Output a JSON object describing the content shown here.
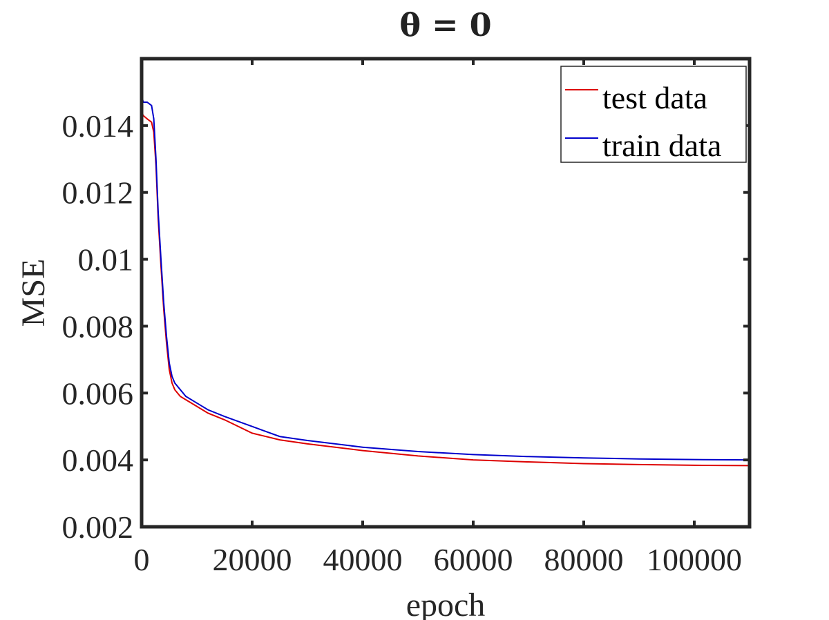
{
  "chart_data": {
    "type": "line",
    "title": "θ = 0",
    "xlabel": "epoch",
    "ylabel": "MSE",
    "xlim": [
      0,
      110000
    ],
    "ylim": [
      0.002,
      0.016
    ],
    "xticks": [
      0,
      20000,
      40000,
      60000,
      80000,
      100000
    ],
    "xtick_labels": [
      "0",
      "20000",
      "40000",
      "60000",
      "80000",
      "100000"
    ],
    "yticks": [
      0.002,
      0.004,
      0.006,
      0.008,
      0.01,
      0.012,
      0.014
    ],
    "ytick_labels": [
      "0.002",
      "0.004",
      "0.006",
      "0.008",
      "0.01",
      "0.012",
      "0.014"
    ],
    "grid": false,
    "legend": "top-right",
    "series": [
      {
        "name": "test data",
        "color": "#dd0000",
        "x": [
          0,
          300,
          1000,
          1800,
          2200,
          2600,
          3000,
          3500,
          4000,
          4500,
          5000,
          5500,
          6000,
          7000,
          8000,
          10000,
          12000,
          15000,
          20000,
          25000,
          30000,
          40000,
          50000,
          60000,
          70000,
          80000,
          90000,
          100000,
          110000
        ],
        "y": [
          0.0144,
          0.0143,
          0.0142,
          0.0141,
          0.0138,
          0.0128,
          0.0112,
          0.0098,
          0.0085,
          0.0075,
          0.0067,
          0.0063,
          0.0061,
          0.0059,
          0.0058,
          0.0056,
          0.0054,
          0.0052,
          0.0048,
          0.0046,
          0.00448,
          0.00428,
          0.00412,
          0.004,
          0.00394,
          0.00389,
          0.00386,
          0.00384,
          0.00383
        ]
      },
      {
        "name": "train data",
        "color": "#0000cc",
        "x": [
          0,
          150,
          300,
          1000,
          1800,
          2200,
          2600,
          3000,
          3500,
          4000,
          4500,
          5000,
          5500,
          6000,
          7000,
          8000,
          10000,
          12000,
          15000,
          20000,
          25000,
          30000,
          40000,
          50000,
          60000,
          70000,
          80000,
          90000,
          100000,
          110000
        ],
        "y": [
          0.0159,
          0.0148,
          0.0147,
          0.0147,
          0.0146,
          0.0142,
          0.013,
          0.0114,
          0.01,
          0.0087,
          0.0077,
          0.0069,
          0.0065,
          0.0063,
          0.0061,
          0.0059,
          0.0057,
          0.0055,
          0.0053,
          0.005,
          0.0047,
          0.00458,
          0.00438,
          0.00425,
          0.00416,
          0.0041,
          0.00406,
          0.00403,
          0.00401,
          0.004
        ]
      }
    ]
  }
}
